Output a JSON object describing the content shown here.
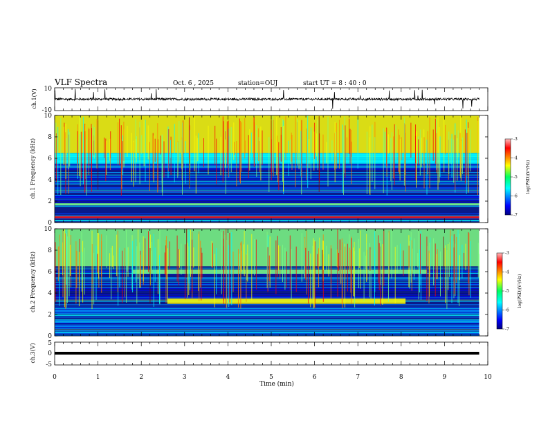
{
  "header": {
    "title": "VLF Spectra",
    "date": "Oct. 6 , 2025",
    "station": "station=OUJ",
    "start": "start UT = 8 : 40 : 0"
  },
  "colors": {
    "waveform": "#000000",
    "spectrogram_colormap": [
      "#00007f",
      "#0000ff",
      "#007fff",
      "#00ffff",
      "#7fff7f",
      "#ffff00",
      "#ff7f00",
      "#ff0000",
      "#7f0000"
    ]
  },
  "chart_data": [
    {
      "type": "line",
      "name": "ch1-waveform",
      "ylabel": "ch.1(V)",
      "ylim": [
        -10,
        10
      ],
      "yticks": [
        "10",
        "-10"
      ],
      "description_values": {
        "baseline": 0,
        "typical_noise_amplitude": 1,
        "max_spike": 10
      },
      "x_range_min": [
        0,
        9.8
      ]
    },
    {
      "type": "heatmap",
      "name": "ch1-spectrogram",
      "ylabel": "ch.1 Frequency (kHz)",
      "ylim": [
        0,
        10
      ],
      "yticks": [
        "0",
        "2",
        "4",
        "6",
        "8",
        "10"
      ],
      "colorbar": {
        "label": "log(PSD)(V²/Hz)",
        "range": [
          -7,
          -3
        ],
        "ticks": [
          "-3",
          "-4",
          "-5",
          "-6",
          "-7"
        ]
      },
      "bands": [
        {
          "fmin": 6.5,
          "fmax": 10,
          "level": -4.5
        },
        {
          "fmin": 5.5,
          "fmax": 6.5,
          "level": -5.5
        },
        {
          "fmin": 0.4,
          "fmax": 0.6,
          "level": -3.3
        },
        {
          "fmin": 1.6,
          "fmax": 1.8,
          "level": -5.0
        }
      ]
    },
    {
      "type": "heatmap",
      "name": "ch2-spectrogram",
      "ylabel": "ch.2 Frequency (kHz)",
      "ylim": [
        0,
        10
      ],
      "yticks": [
        "0",
        "2",
        "4",
        "6",
        "8",
        "10"
      ],
      "colorbar": {
        "label": "log(PSD)(V²/Hz)",
        "range": [
          -7,
          -3
        ],
        "ticks": [
          "-3",
          "-4",
          "-5",
          "-6",
          "-7"
        ]
      },
      "bands": [
        {
          "tmin": 1.8,
          "tmax": 8.6,
          "fmin": 5.8,
          "fmax": 6.2,
          "level": -4.8
        },
        {
          "tmin": 2.6,
          "tmax": 8.1,
          "fmin": 3.0,
          "fmax": 3.5,
          "level": -4.5
        },
        {
          "fmin": 6.5,
          "fmax": 10,
          "level": -5.0
        }
      ]
    },
    {
      "type": "line",
      "name": "ch3-waveform",
      "ylabel": "ch.3(V)",
      "ylim": [
        -5,
        5
      ],
      "yticks": [
        "5",
        "0",
        "-5"
      ],
      "x_range_min": [
        0,
        9.8
      ],
      "values_constant": -1
    }
  ],
  "xaxis": {
    "label": "Time (min)",
    "range": [
      0,
      10
    ],
    "ticks": [
      "0",
      "1",
      "2",
      "3",
      "4",
      "5",
      "6",
      "7",
      "8",
      "9",
      "10"
    ]
  }
}
